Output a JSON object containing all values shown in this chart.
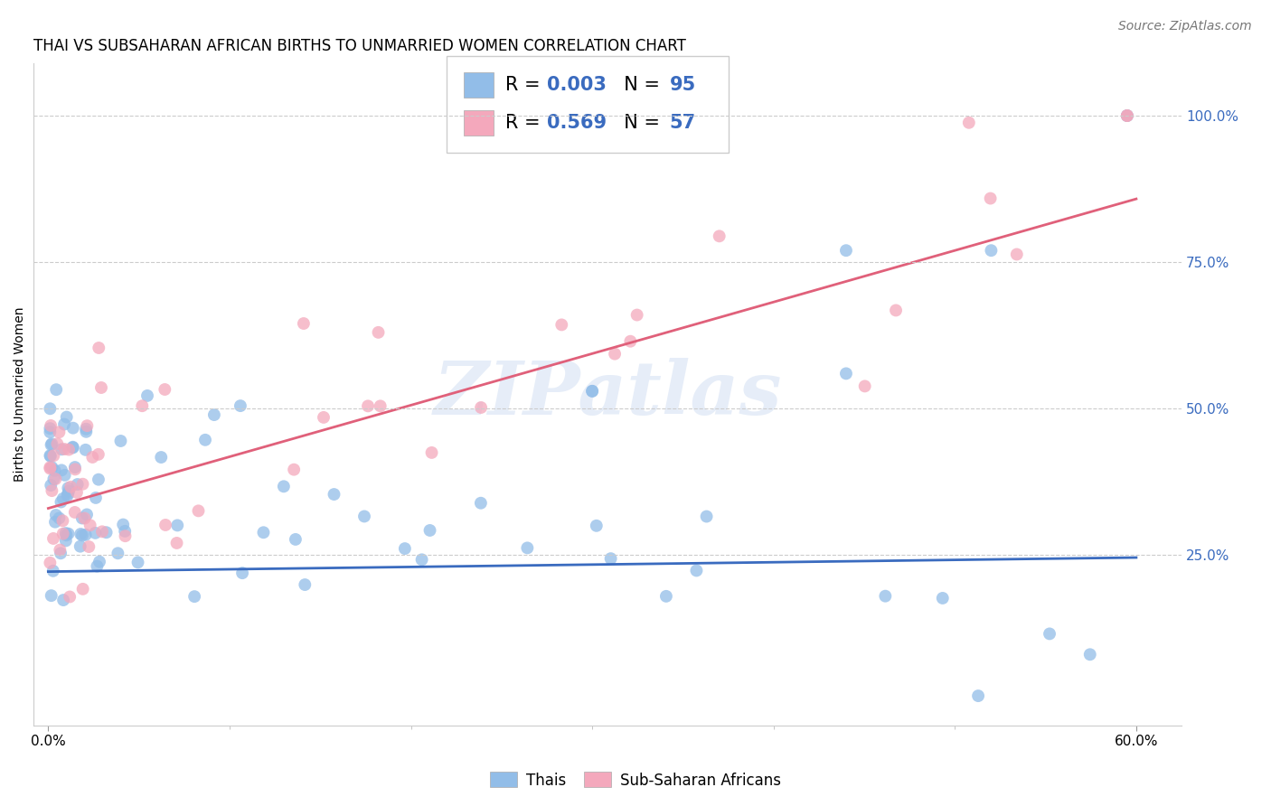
{
  "title": "THAI VS SUBSAHARAN AFRICAN BIRTHS TO UNMARRIED WOMEN CORRELATION CHART",
  "source": "Source: ZipAtlas.com",
  "ylabel": "Births to Unmarried Women",
  "ytick_labels": [
    "100.0%",
    "75.0%",
    "50.0%",
    "25.0%"
  ],
  "ytick_values": [
    1.0,
    0.75,
    0.5,
    0.25
  ],
  "xlim": [
    0.0,
    0.6
  ],
  "ylim": [
    0.0,
    1.08
  ],
  "thai_color": "#92bde8",
  "african_color": "#f4a8bc",
  "blue_color": "#3a6bbf",
  "pink_color": "#e0607a",
  "thai_line_color": "#3a6bbf",
  "african_line_color": "#e0607a",
  "legend_text_color": "#3a6bbf",
  "legend_R_thai": "0.003",
  "legend_N_thai": "95",
  "legend_R_african": "0.569",
  "legend_N_african": "57",
  "thai_reg_slope": 0.04,
  "thai_reg_intercept": 0.222,
  "african_reg_slope": 0.88,
  "african_reg_intercept": 0.33,
  "watermark": "ZIPatlas",
  "title_fontsize": 12,
  "source_fontsize": 10,
  "axis_label_fontsize": 10,
  "tick_fontsize": 11,
  "legend_fontsize": 15,
  "marker_size": 100,
  "thai_seed": 77,
  "african_seed": 99
}
